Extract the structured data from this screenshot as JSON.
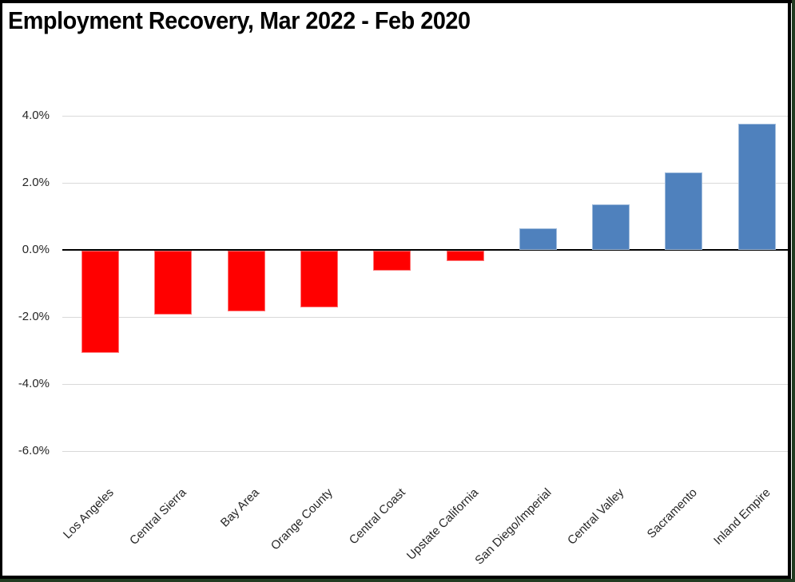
{
  "title": "Employment Recovery, Mar 2022 - Feb 2020",
  "colors": {
    "negative_bar": "#FF0000",
    "positive_bar": "#4F81BD",
    "gridline": "#D9D9D9",
    "zero_line": "#000000",
    "axis_text": "#262626",
    "frame_border": "#000000",
    "outer_edge": "#223C22",
    "background": "#FFFFFF"
  },
  "chart_data": {
    "type": "bar",
    "title": "Employment Recovery, Mar 2022 - Feb 2020",
    "categories": [
      "Los Angeles",
      "Central Sierra",
      "Bay Area",
      "Orange County",
      "Central Coast",
      "Upstate California",
      "San Diego/Imperial",
      "Central Valley",
      "Sacramento",
      "Inland Empire"
    ],
    "values": [
      -3.05,
      -1.9,
      -1.8,
      -1.7,
      -0.6,
      -0.3,
      0.65,
      1.35,
      2.3,
      3.75
    ],
    "unit": "%",
    "xlabel": "",
    "ylabel": "",
    "y_tick_labels": [
      "4.0%",
      "2.0%",
      "0.0%",
      "-2.0%",
      "-4.0%",
      "-6.0%"
    ],
    "y_tick_values": [
      4,
      2,
      0,
      -2,
      -4,
      -6
    ],
    "ylim": [
      -7,
      4.6
    ],
    "gridlines": true,
    "legend": "none",
    "color_rule": "negative values red, positive values blue",
    "x_label_rotation_deg": 45
  }
}
